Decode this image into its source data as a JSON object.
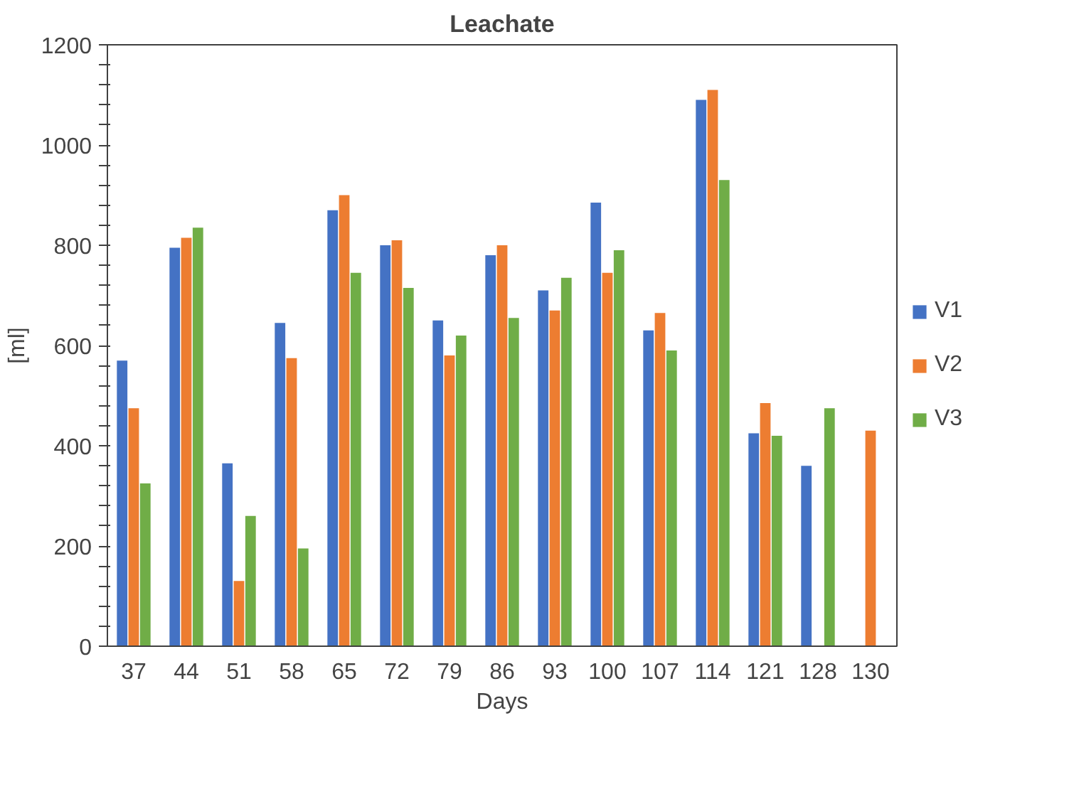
{
  "chart_data": {
    "type": "bar",
    "title": "Leachate",
    "xlabel": "Days",
    "ylabel": "[ml]",
    "categories": [
      "37",
      "44",
      "51",
      "58",
      "65",
      "72",
      "79",
      "86",
      "93",
      "100",
      "107",
      "114",
      "121",
      "128",
      "130"
    ],
    "series": [
      {
        "name": "V1",
        "color": "#4472c4",
        "values": [
          570,
          795,
          365,
          645,
          870,
          800,
          650,
          780,
          710,
          885,
          630,
          1090,
          425,
          360,
          null
        ]
      },
      {
        "name": "V2",
        "color": "#ed7d31",
        "values": [
          475,
          815,
          130,
          575,
          900,
          810,
          580,
          800,
          670,
          745,
          665,
          1110,
          485,
          null,
          430
        ]
      },
      {
        "name": "V3",
        "color": "#70ad47",
        "values": [
          325,
          835,
          260,
          195,
          745,
          715,
          620,
          655,
          735,
          790,
          590,
          930,
          420,
          475,
          null
        ]
      }
    ],
    "ylim": [
      0,
      1200
    ],
    "yticks": [
      0,
      {
        "value": 40,
        "label": null
      },
      {
        "value": 80,
        "label": null
      },
      {
        "value": 120,
        "label": null
      },
      {
        "value": 160,
        "label": null
      },
      200,
      {
        "value": 240,
        "label": null
      },
      {
        "value": 280,
        "label": null
      },
      {
        "value": 320,
        "label": null
      },
      {
        "value": 360,
        "label": null
      },
      400,
      {
        "value": 440,
        "label": null
      },
      {
        "value": 480,
        "label": null
      },
      {
        "value": 520,
        "label": null
      },
      {
        "value": 560,
        "label": null
      },
      600,
      {
        "value": 640,
        "label": null
      },
      {
        "value": 680,
        "label": null
      },
      {
        "value": 720,
        "label": null
      },
      {
        "value": 760,
        "label": null
      },
      800,
      {
        "value": 840,
        "label": null
      },
      {
        "value": 880,
        "label": null
      },
      {
        "value": 920,
        "label": null
      },
      {
        "value": 960,
        "label": null
      },
      1000,
      {
        "value": 1040,
        "label": null
      },
      {
        "value": 1080,
        "label": null
      },
      {
        "value": 1120,
        "label": null
      },
      {
        "value": 1160,
        "label": null
      },
      1200
    ],
    "grid": false,
    "legend": "right"
  }
}
